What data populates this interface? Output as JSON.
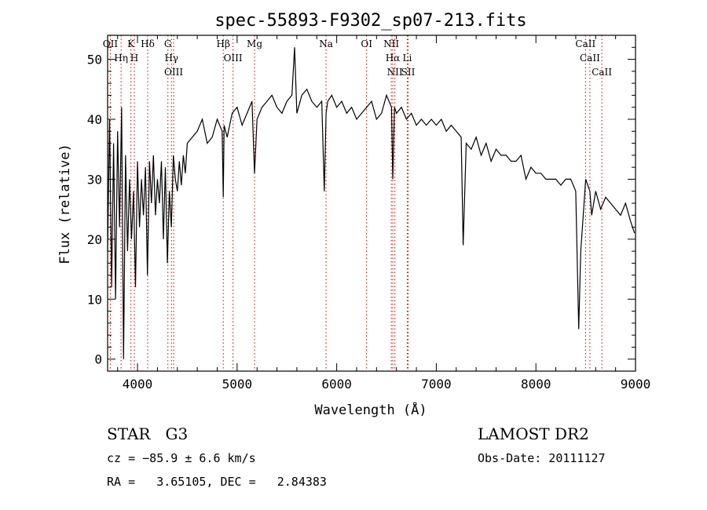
{
  "chart_data": {
    "type": "line",
    "title": "spec-55893-F9302_sp07-213.fits",
    "xlabel": "Wavelength (Å)",
    "ylabel": "Flux (relative)",
    "xlim": [
      3700,
      9000
    ],
    "ylim": [
      -2,
      54
    ],
    "x_ticks": [
      4000,
      5000,
      6000,
      7000,
      8000,
      9000
    ],
    "y_ticks": [
      0,
      10,
      20,
      30,
      40,
      50
    ],
    "grid": false,
    "series": [
      {
        "color": "#000000",
        "x": [
          3700,
          3720,
          3740,
          3760,
          3780,
          3800,
          3820,
          3840,
          3860,
          3880,
          3900,
          3920,
          3940,
          3960,
          3980,
          4000,
          4020,
          4040,
          4060,
          4080,
          4100,
          4120,
          4140,
          4160,
          4180,
          4200,
          4220,
          4240,
          4260,
          4280,
          4300,
          4320,
          4340,
          4360,
          4380,
          4400,
          4420,
          4440,
          4460,
          4480,
          4500,
          4550,
          4600,
          4650,
          4700,
          4750,
          4800,
          4850,
          4861,
          4870,
          4900,
          4950,
          5000,
          5050,
          5100,
          5150,
          5175,
          5200,
          5250,
          5300,
          5350,
          5400,
          5450,
          5500,
          5550,
          5577,
          5600,
          5650,
          5700,
          5750,
          5800,
          5850,
          5875,
          5893,
          5910,
          5950,
          6000,
          6050,
          6100,
          6150,
          6200,
          6250,
          6300,
          6350,
          6400,
          6450,
          6500,
          6550,
          6563,
          6580,
          6600,
          6650,
          6700,
          6750,
          6800,
          6850,
          6900,
          6950,
          7000,
          7050,
          7100,
          7150,
          7200,
          7250,
          7270,
          7300,
          7350,
          7400,
          7450,
          7500,
          7550,
          7600,
          7650,
          7700,
          7750,
          7800,
          7850,
          7900,
          7950,
          8000,
          8050,
          8100,
          8150,
          8200,
          8250,
          8300,
          8350,
          8400,
          8430,
          8450,
          8500,
          8542,
          8560,
          8600,
          8650,
          8700,
          8750,
          8800,
          8850,
          8900,
          8950,
          8990
        ],
        "y": [
          18,
          40,
          12,
          36,
          10,
          38,
          22,
          42,
          0,
          34,
          18,
          30,
          20,
          28,
          12,
          33,
          22,
          30,
          24,
          32,
          14,
          33,
          26,
          34,
          24,
          30,
          26,
          33,
          20,
          32,
          16,
          28,
          22,
          34,
          30,
          28,
          33,
          29,
          34,
          31,
          36,
          37,
          38,
          40,
          36,
          37,
          40,
          38,
          27,
          39,
          37,
          41,
          42,
          39,
          41,
          43,
          31,
          40,
          42,
          43,
          44,
          42,
          41,
          43,
          44,
          52,
          41,
          44,
          45,
          43,
          42,
          43,
          28,
          41,
          43,
          44,
          42,
          43,
          41,
          42,
          40,
          41,
          42,
          43,
          40,
          41,
          44,
          42,
          30,
          42,
          41,
          42,
          40,
          41,
          39,
          40,
          39,
          40,
          39,
          40,
          38,
          39,
          38,
          37,
          19,
          36,
          35,
          37,
          34,
          36,
          33,
          35,
          34,
          34,
          33,
          33,
          34,
          30,
          32,
          31,
          31,
          30,
          30,
          30,
          29,
          30,
          30,
          28,
          5,
          18,
          30,
          28,
          24,
          28,
          25,
          27,
          26,
          25,
          24,
          26,
          23,
          21
        ]
      }
    ],
    "lines": [
      {
        "label": "OII",
        "x": 3727
      },
      {
        "label": "Hη",
        "x": 3835
      },
      {
        "label": "H",
        "x": 3968
      },
      {
        "label": "K",
        "x": 3934
      },
      {
        "label": "Hδ",
        "x": 4102
      },
      {
        "label": "OIII",
        "x": 4363
      },
      {
        "label": "Hγ",
        "x": 4341
      },
      {
        "label": "G",
        "x": 4305
      },
      {
        "label": "Hβ",
        "x": 4861
      },
      {
        "label": "OIII",
        "x": 4959
      },
      {
        "label": "Mg",
        "x": 5175
      },
      {
        "label": "Na",
        "x": 5893
      },
      {
        "label": "OI",
        "x": 6300
      },
      {
        "label": "NII",
        "x": 6548
      },
      {
        "label": "NII",
        "x": 6584
      },
      {
        "label": "Hα",
        "x": 6563
      },
      {
        "label": "Li",
        "x": 6708
      },
      {
        "label": "SII",
        "x": 6717
      },
      {
        "label": "CaII",
        "x": 8498
      },
      {
        "label": "CaII",
        "x": 8542
      },
      {
        "label": "CaII",
        "x": 8662
      }
    ]
  },
  "info": {
    "class": "STAR",
    "subclass": "G3",
    "survey": "LAMOST DR2",
    "cz": "cz = −85.9 ± 6.6 km/s",
    "obs_date": "Obs-Date: 20111127",
    "coords": "RA =   3.65105, DEC =   2.84383"
  }
}
